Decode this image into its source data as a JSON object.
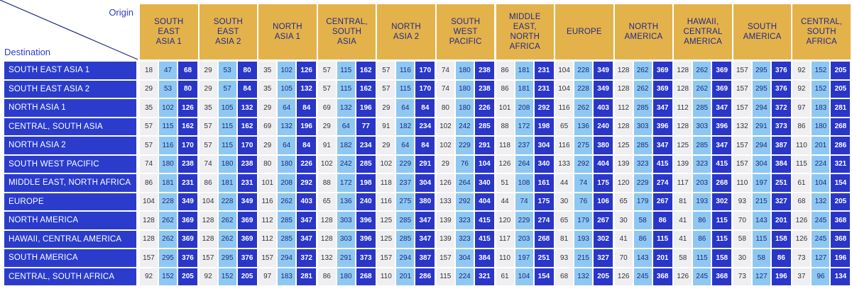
{
  "corner": {
    "origin": "Origin",
    "destination": "Destination"
  },
  "origins": [
    [
      "SOUTH",
      "EAST",
      "ASIA 1"
    ],
    [
      "SOUTH",
      "EAST",
      "ASIA 2"
    ],
    [
      "NORTH",
      "ASIA 1"
    ],
    [
      "CENTRAL,",
      "SOUTH",
      "ASIA"
    ],
    [
      "NORTH",
      "ASIA 2"
    ],
    [
      "SOUTH",
      "WEST",
      "PACIFIC"
    ],
    [
      "MIDDLE",
      "EAST,",
      "NORTH",
      "AFRICA"
    ],
    [
      "EUROPE"
    ],
    [
      "NORTH",
      "AMERICA"
    ],
    [
      "HAWAII,",
      "CENTRAL",
      "AMERICA"
    ],
    [
      "SOUTH",
      "AMERICA"
    ],
    [
      "CENTRAL,",
      "SOUTH",
      "AFRICA"
    ]
  ],
  "rows": [
    {
      "destination": "SOUTH EAST ASIA 1",
      "values": [
        [
          18,
          47,
          68
        ],
        [
          29,
          53,
          80
        ],
        [
          35,
          102,
          126
        ],
        [
          57,
          115,
          162
        ],
        [
          57,
          116,
          170
        ],
        [
          74,
          180,
          238
        ],
        [
          86,
          181,
          231
        ],
        [
          104,
          228,
          349
        ],
        [
          128,
          262,
          369
        ],
        [
          128,
          262,
          369
        ],
        [
          157,
          295,
          376
        ],
        [
          92,
          152,
          205
        ]
      ]
    },
    {
      "destination": "SOUTH EAST ASIA 2",
      "values": [
        [
          29,
          53,
          80
        ],
        [
          29,
          57,
          84
        ],
        [
          35,
          105,
          132
        ],
        [
          57,
          115,
          162
        ],
        [
          57,
          115,
          170
        ],
        [
          74,
          180,
          238
        ],
        [
          86,
          181,
          231
        ],
        [
          104,
          228,
          349
        ],
        [
          128,
          262,
          369
        ],
        [
          128,
          262,
          369
        ],
        [
          157,
          295,
          376
        ],
        [
          92,
          152,
          205
        ]
      ]
    },
    {
      "destination": "NORTH ASIA 1",
      "values": [
        [
          35,
          102,
          126
        ],
        [
          35,
          105,
          132
        ],
        [
          29,
          64,
          84
        ],
        [
          69,
          132,
          196
        ],
        [
          29,
          64,
          84
        ],
        [
          80,
          180,
          226
        ],
        [
          101,
          208,
          292
        ],
        [
          116,
          262,
          403
        ],
        [
          112,
          285,
          347
        ],
        [
          112,
          285,
          347
        ],
        [
          157,
          294,
          372
        ],
        [
          97,
          183,
          281
        ]
      ]
    },
    {
      "destination": "CENTRAL, SOUTH ASIA",
      "values": [
        [
          57,
          115,
          162
        ],
        [
          57,
          115,
          162
        ],
        [
          69,
          132,
          196
        ],
        [
          29,
          64,
          77
        ],
        [
          91,
          182,
          234
        ],
        [
          102,
          242,
          285
        ],
        [
          88,
          172,
          198
        ],
        [
          65,
          136,
          240
        ],
        [
          128,
          303,
          396
        ],
        [
          128,
          303,
          396
        ],
        [
          132,
          291,
          373
        ],
        [
          86,
          180,
          268
        ]
      ]
    },
    {
      "destination": "NORTH ASIA 2",
      "values": [
        [
          57,
          116,
          170
        ],
        [
          57,
          115,
          170
        ],
        [
          29,
          64,
          84
        ],
        [
          91,
          182,
          234
        ],
        [
          29,
          64,
          84
        ],
        [
          102,
          229,
          291
        ],
        [
          118,
          237,
          304
        ],
        [
          116,
          275,
          380
        ],
        [
          125,
          285,
          347
        ],
        [
          125,
          285,
          347
        ],
        [
          157,
          294,
          387
        ],
        [
          110,
          201,
          286
        ]
      ]
    },
    {
      "destination": "SOUTH WEST PACIFIC",
      "values": [
        [
          74,
          180,
          238
        ],
        [
          74,
          180,
          238
        ],
        [
          80,
          180,
          226
        ],
        [
          102,
          242,
          285
        ],
        [
          102,
          229,
          291
        ],
        [
          29,
          76,
          104
        ],
        [
          126,
          264,
          340
        ],
        [
          133,
          292,
          404
        ],
        [
          139,
          323,
          415
        ],
        [
          139,
          323,
          415
        ],
        [
          157,
          304,
          384
        ],
        [
          115,
          224,
          321
        ]
      ]
    },
    {
      "destination": "MIDDLE EAST, NORTH AFRICA",
      "values": [
        [
          86,
          181,
          231
        ],
        [
          86,
          181,
          231
        ],
        [
          101,
          208,
          292
        ],
        [
          88,
          172,
          198
        ],
        [
          118,
          237,
          304
        ],
        [
          126,
          264,
          340
        ],
        [
          51,
          108,
          161
        ],
        [
          44,
          74,
          175
        ],
        [
          120,
          229,
          274
        ],
        [
          117,
          203,
          268
        ],
        [
          110,
          197,
          251
        ],
        [
          61,
          104,
          154
        ]
      ]
    },
    {
      "destination": "EUROPE",
      "values": [
        [
          104,
          228,
          349
        ],
        [
          104,
          228,
          349
        ],
        [
          116,
          262,
          403
        ],
        [
          65,
          136,
          240
        ],
        [
          116,
          275,
          380
        ],
        [
          133,
          292,
          404
        ],
        [
          44,
          74,
          175
        ],
        [
          30,
          76,
          106
        ],
        [
          65,
          179,
          267
        ],
        [
          81,
          193,
          302
        ],
        [
          93,
          215,
          327
        ],
        [
          68,
          132,
          205
        ]
      ]
    },
    {
      "destination": "NORTH AMERICA",
      "values": [
        [
          128,
          262,
          369
        ],
        [
          128,
          262,
          369
        ],
        [
          112,
          285,
          347
        ],
        [
          128,
          303,
          396
        ],
        [
          125,
          285,
          347
        ],
        [
          139,
          323,
          415
        ],
        [
          120,
          229,
          274
        ],
        [
          65,
          179,
          267
        ],
        [
          30,
          58,
          86
        ],
        [
          41,
          86,
          115
        ],
        [
          70,
          143,
          201
        ],
        [
          126,
          245,
          368
        ]
      ]
    },
    {
      "destination": "HAWAII, CENTRAL AMERICA",
      "values": [
        [
          128,
          262,
          369
        ],
        [
          128,
          262,
          369
        ],
        [
          112,
          285,
          347
        ],
        [
          128,
          303,
          396
        ],
        [
          125,
          285,
          347
        ],
        [
          139,
          323,
          415
        ],
        [
          117,
          203,
          268
        ],
        [
          81,
          193,
          302
        ],
        [
          41,
          86,
          115
        ],
        [
          41,
          86,
          115
        ],
        [
          58,
          115,
          158
        ],
        [
          126,
          245,
          368
        ]
      ]
    },
    {
      "destination": "SOUTH AMERICA",
      "values": [
        [
          157,
          295,
          376
        ],
        [
          157,
          295,
          376
        ],
        [
          157,
          294,
          372
        ],
        [
          132,
          291,
          373
        ],
        [
          157,
          294,
          387
        ],
        [
          157,
          304,
          384
        ],
        [
          110,
          197,
          251
        ],
        [
          93,
          215,
          327
        ],
        [
          70,
          143,
          201
        ],
        [
          58,
          115,
          158
        ],
        [
          30,
          58,
          86
        ],
        [
          73,
          127,
          196
        ]
      ]
    },
    {
      "destination": "CENTRAL, SOUTH AFRICA",
      "values": [
        [
          92,
          152,
          205
        ],
        [
          92,
          152,
          205
        ],
        [
          97,
          183,
          281
        ],
        [
          86,
          180,
          268
        ],
        [
          110,
          201,
          286
        ],
        [
          115,
          224,
          321
        ],
        [
          61,
          104,
          154
        ],
        [
          68,
          132,
          205
        ],
        [
          126,
          245,
          368
        ],
        [
          126,
          245,
          368
        ],
        [
          73,
          127,
          196
        ],
        [
          37,
          96,
          134
        ]
      ]
    }
  ]
}
